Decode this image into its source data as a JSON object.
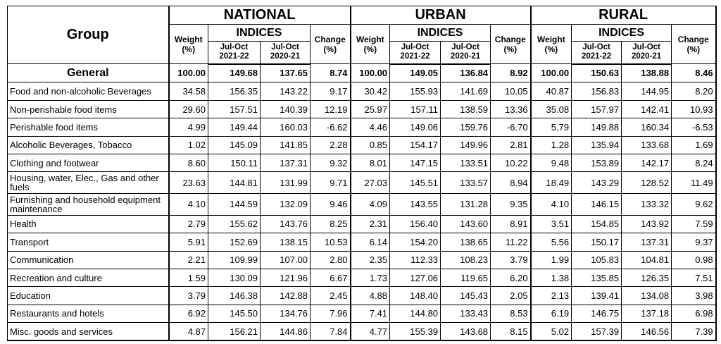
{
  "header": {
    "group_label": "Group",
    "regions": [
      "NATIONAL",
      "URBAN",
      "RURAL"
    ],
    "weight_label": "Weight (%)",
    "indices_label": "INDICES",
    "change_label": "Change (%)",
    "period_current": "Jul-Oct 2021-22",
    "period_previous": "Jul-Oct 2020-21"
  },
  "rows": [
    {
      "group": "General",
      "v": [
        "100.00",
        "149.68",
        "137.65",
        "8.74",
        "100.00",
        "149.05",
        "136.84",
        "8.92",
        "100.00",
        "150.63",
        "138.88",
        "8.46"
      ]
    },
    {
      "group": "Food and non-alcoholic Beverages",
      "v": [
        "34.58",
        "156.35",
        "143.22",
        "9.17",
        "30.42",
        "155.93",
        "141.69",
        "10.05",
        "40.87",
        "156.83",
        "144.95",
        "8.20"
      ]
    },
    {
      "group": "Non-perishable food items",
      "v": [
        "29.60",
        "157.51",
        "140.39",
        "12.19",
        "25.97",
        "157.11",
        "138.59",
        "13.36",
        "35.08",
        "157.97",
        "142.41",
        "10.93"
      ]
    },
    {
      "group": "Perishable food items",
      "v": [
        "4.99",
        "149.44",
        "160.03",
        "-6.62",
        "4.46",
        "149.06",
        "159.76",
        "-6.70",
        "5.79",
        "149.88",
        "160.34",
        "-6.53"
      ]
    },
    {
      "group": "Alcoholic Beverages, Tobacco",
      "v": [
        "1.02",
        "145.09",
        "141.85",
        "2.28",
        "0.85",
        "154.17",
        "149.96",
        "2.81",
        "1.28",
        "135.94",
        "133.68",
        "1.69"
      ]
    },
    {
      "group": "Clothing and footwear",
      "v": [
        "8.60",
        "150.11",
        "137.31",
        "9.32",
        "8.01",
        "147.15",
        "133.51",
        "10.22",
        "9.48",
        "153.89",
        "142.17",
        "8.24"
      ]
    },
    {
      "group": "Housing, water, Elec., Gas and other fuels",
      "v": [
        "23.63",
        "144.81",
        "131.99",
        "9.71",
        "27.03",
        "145.51",
        "133.57",
        "8.94",
        "18.49",
        "143.29",
        "128.52",
        "11.49"
      ]
    },
    {
      "group": "Furnishing and household equipment maintenance",
      "v": [
        "4.10",
        "144.59",
        "132.09",
        "9.46",
        "4.09",
        "143.55",
        "131.28",
        "9.35",
        "4.10",
        "146.15",
        "133.32",
        "9.62"
      ]
    },
    {
      "group": "Health",
      "v": [
        "2.79",
        "155.62",
        "143.76",
        "8.25",
        "2.31",
        "156.40",
        "143.60",
        "8.91",
        "3.51",
        "154.85",
        "143.92",
        "7.59"
      ]
    },
    {
      "group": "Transport",
      "v": [
        "5.91",
        "152.69",
        "138.15",
        "10.53",
        "6.14",
        "154.20",
        "138.65",
        "11.22",
        "5.56",
        "150.17",
        "137.31",
        "9.37"
      ]
    },
    {
      "group": "Communication",
      "v": [
        "2.21",
        "109.99",
        "107.00",
        "2.80",
        "2.35",
        "112.33",
        "108.23",
        "3.79",
        "1.99",
        "105.83",
        "104.81",
        "0.98"
      ]
    },
    {
      "group": "Recreation and culture",
      "v": [
        "1.59",
        "130.09",
        "121.96",
        "6.67",
        "1.73",
        "127.06",
        "119.65",
        "6.20",
        "1.38",
        "135.85",
        "126.35",
        "7.51"
      ]
    },
    {
      "group": "Education",
      "v": [
        "3.79",
        "146.38",
        "142.88",
        "2.45",
        "4.88",
        "148.40",
        "145.43",
        "2.05",
        "2.13",
        "139.41",
        "134.08",
        "3.98"
      ]
    },
    {
      "group": "Restaurants and hotels",
      "v": [
        "6.92",
        "145.50",
        "134.76",
        "7.96",
        "7.41",
        "144.80",
        "133.43",
        "8.53",
        "6.19",
        "146.75",
        "137.18",
        "6.98"
      ]
    },
    {
      "group": "Misc. goods and services",
      "v": [
        "4.87",
        "156.21",
        "144.86",
        "7.84",
        "4.77",
        "155.39",
        "143.68",
        "8.15",
        "5.02",
        "157.39",
        "146.56",
        "7.39"
      ]
    }
  ]
}
